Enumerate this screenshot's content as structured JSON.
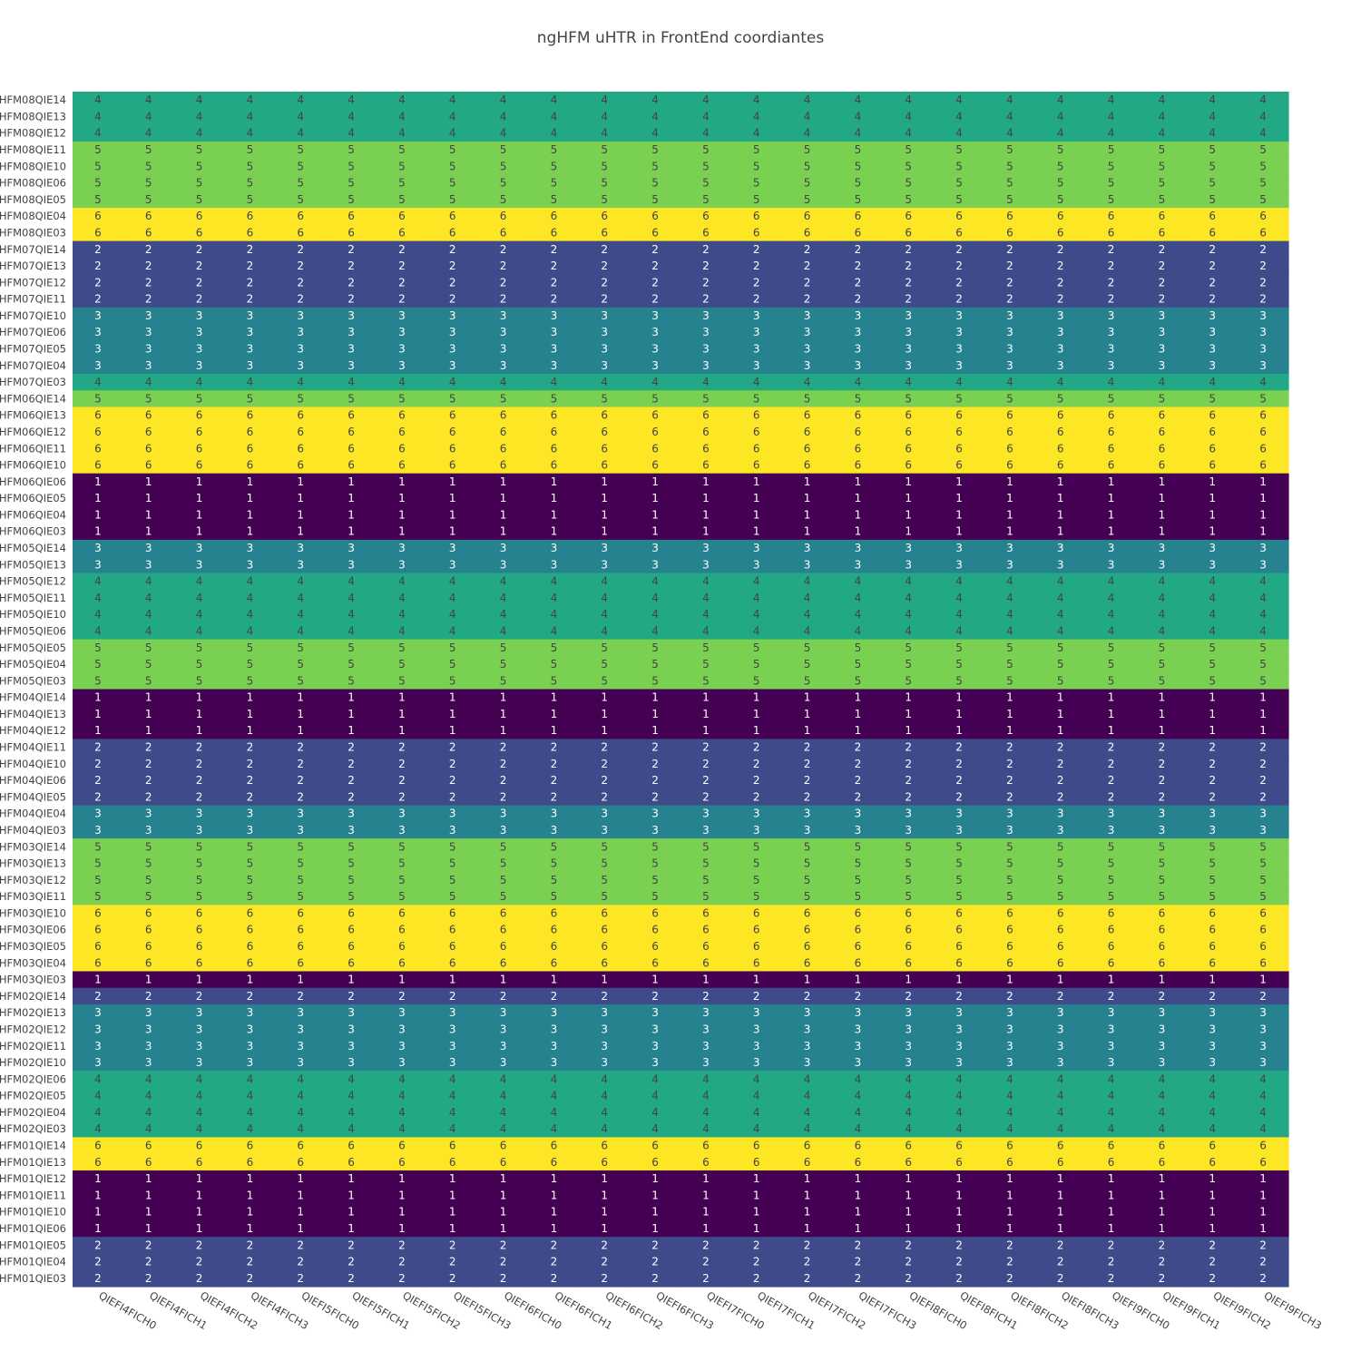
{
  "chart_data": {
    "type": "heatmap",
    "title": "ngHFM uHTR in FrontEnd coordiantes",
    "x_categories": [
      "QIEFI4FICH0",
      "QIEFI4FICH1",
      "QIEFI4FICH2",
      "QIEFI4FICH3",
      "QIEFI5FICH0",
      "QIEFI5FICH1",
      "QIEFI5FICH2",
      "QIEFI5FICH3",
      "QIEFI6FICH0",
      "QIEFI6FICH1",
      "QIEFI6FICH2",
      "QIEFI6FICH3",
      "QIEFI7FICH0",
      "QIEFI7FICH1",
      "QIEFI7FICH2",
      "QIEFI7FICH3",
      "QIEFI8FICH0",
      "QIEFI8FICH1",
      "QIEFI8FICH2",
      "QIEFI8FICH3",
      "QIEFI9FICH0",
      "QIEFI9FICH1",
      "QIEFI9FICH2",
      "QIEFI9FICH3"
    ],
    "y_categories": [
      "HFM08QIE14",
      "HFM08QIE13",
      "HFM08QIE12",
      "HFM08QIE11",
      "HFM08QIE10",
      "HFM08QIE06",
      "HFM08QIE05",
      "HFM08QIE04",
      "HFM08QIE03",
      "HFM07QIE14",
      "HFM07QIE13",
      "HFM07QIE12",
      "HFM07QIE11",
      "HFM07QIE10",
      "HFM07QIE06",
      "HFM07QIE05",
      "HFM07QIE04",
      "HFM07QIE03",
      "HFM06QIE14",
      "HFM06QIE13",
      "HFM06QIE12",
      "HFM06QIE11",
      "HFM06QIE10",
      "HFM06QIE06",
      "HFM06QIE05",
      "HFM06QIE04",
      "HFM06QIE03",
      "HFM05QIE14",
      "HFM05QIE13",
      "HFM05QIE12",
      "HFM05QIE11",
      "HFM05QIE10",
      "HFM05QIE06",
      "HFM05QIE05",
      "HFM05QIE04",
      "HFM05QIE03",
      "HFM04QIE14",
      "HFM04QIE13",
      "HFM04QIE12",
      "HFM04QIE11",
      "HFM04QIE10",
      "HFM04QIE06",
      "HFM04QIE05",
      "HFM04QIE04",
      "HFM04QIE03",
      "HFM03QIE14",
      "HFM03QIE13",
      "HFM03QIE12",
      "HFM03QIE11",
      "HFM03QIE10",
      "HFM03QIE06",
      "HFM03QIE05",
      "HFM03QIE04",
      "HFM03QIE03",
      "HFM02QIE14",
      "HFM02QIE13",
      "HFM02QIE12",
      "HFM02QIE11",
      "HFM02QIE10",
      "HFM02QIE06",
      "HFM02QIE05",
      "HFM02QIE04",
      "HFM02QIE03",
      "HFM01QIE14",
      "HFM01QIE13",
      "HFM01QIE12",
      "HFM01QIE11",
      "HFM01QIE10",
      "HFM01QIE06",
      "HFM01QIE05",
      "HFM01QIE04",
      "HFM01QIE03"
    ],
    "row_values": [
      4,
      4,
      4,
      5,
      5,
      5,
      5,
      6,
      6,
      2,
      2,
      2,
      2,
      3,
      3,
      3,
      3,
      4,
      5,
      6,
      6,
      6,
      6,
      1,
      1,
      1,
      1,
      3,
      3,
      4,
      4,
      4,
      4,
      5,
      5,
      5,
      1,
      1,
      1,
      2,
      2,
      2,
      2,
      3,
      3,
      5,
      5,
      5,
      5,
      6,
      6,
      6,
      6,
      1,
      2,
      3,
      3,
      3,
      3,
      4,
      4,
      4,
      4,
      6,
      6,
      1,
      1,
      1,
      1,
      2,
      2,
      2
    ],
    "values_note_rows_constant": true,
    "colorscale": {
      "1": "#440154",
      "2": "#3e4a89",
      "3": "#26828e",
      "4": "#22a884",
      "5": "#7ad151",
      "6": "#fde725"
    },
    "text_colors": {
      "dark_bg": "#ffffff",
      "light_bg": "#444444"
    },
    "show_cell_labels": true,
    "grid": false
  }
}
